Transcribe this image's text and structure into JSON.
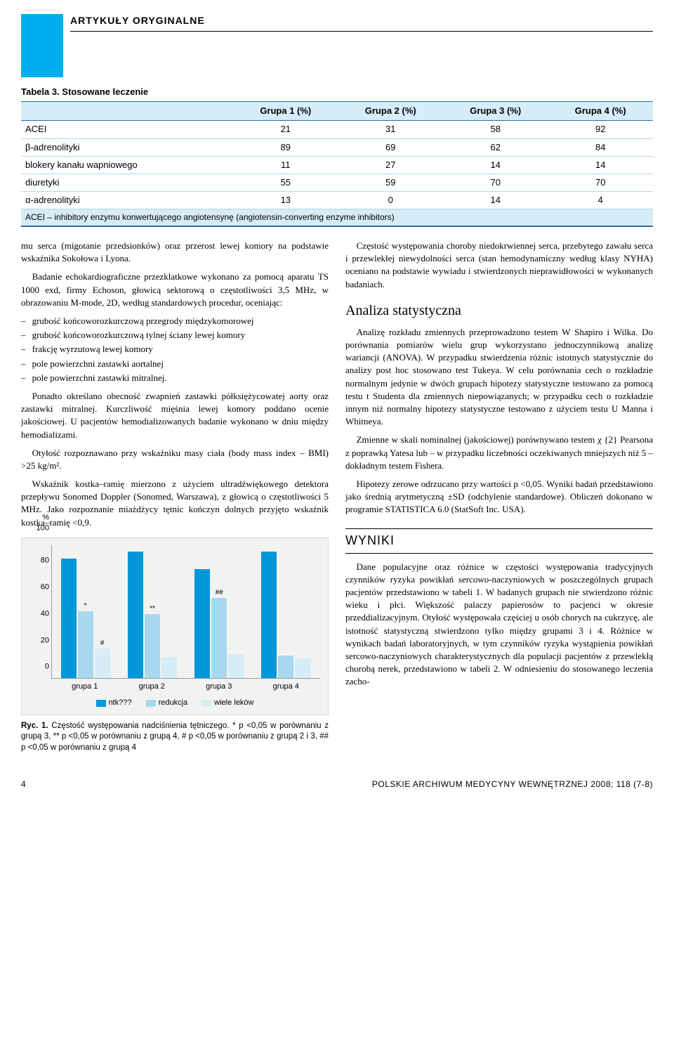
{
  "header": {
    "section_label": "ARTYKUŁY ORYGINALNE"
  },
  "table3": {
    "title": "Tabela 3. Stosowane leczenie",
    "columns": [
      "",
      "Grupa 1 (%)",
      "Grupa 2 (%)",
      "Grupa 3 (%)",
      "Grupa 4 (%)"
    ],
    "rows": [
      [
        "ACEI",
        "21",
        "31",
        "58",
        "92"
      ],
      [
        "β-adrenolityki",
        "89",
        "69",
        "62",
        "84"
      ],
      [
        "blokery kanału wapniowego",
        "11",
        "27",
        "14",
        "14"
      ],
      [
        "diuretyki",
        "55",
        "59",
        "70",
        "70"
      ],
      [
        "α-adrenolityki",
        "13",
        "0",
        "14",
        "4"
      ]
    ],
    "footnote": "ACEI – inhibitory enzymu konwertującego angiotensynę (angiotensin-converting enzyme inhibitors)"
  },
  "left": {
    "p1": "mu serca (migotanie przedsionków) oraz przerost lewej komory na podstawie wskaźnika Sokołowa i Lyona.",
    "p2": "Badanie echokardiograficzne przezklatkowe wykonano za pomocą aparatu TS 1000 exd, firmy Echoson, głowicą sektorową o częstotliwości 3,5 MHz, w obrazowaniu M-mode, 2D, według standardowych procedur, oceniając:",
    "bullets": [
      "grubość końcoworozkurczową przegrody międzykomorowej",
      "grubość końcoworozkurczową tylnej ściany lewej komory",
      "frakcję wyrzutową lewej komory",
      "pole powierzchni zastawki aortalnej",
      "pole powierzchni zastawki mitralnej."
    ],
    "p3": "Ponadto określano obecność zwapnień zastawki półksiężycowatej aorty oraz zastawki mitralnej. Kurczliwość mięśnia lewej komory poddano ocenie jakościowej. U pacjentów hemodializowanych badanie wykonano w dniu między hemodializami.",
    "p4": "Otyłość rozpoznawano przy wskaźniku masy ciała (body mass index – BMI) >25 kg/m².",
    "p5": "Wskaźnik kostka–ramię mierzono z użyciem ultradźwiękowego detektora przepływu Sonomed Doppler (Sonomed, Warszawa), z głowicą o częstotliwości 5 MHz. Jako rozpoznanie miażdżycy tętnic kończyn dolnych przyjęto wskaźnik kostka–ramię <0,9."
  },
  "right": {
    "p1": "Częstość występowania choroby niedokrwiennej serca, przebytego zawału serca i przewlekłej niewydolności serca (stan hemodynamiczny według klasy NYHA) oceniano na podstawie wywiadu i stwierdzonych nieprawidłowości w wykonanych badaniach.",
    "h_stat": "Analiza statystyczna",
    "p2": "Analizę rozkładu zmiennych przeprowadzono testem W Shapiro i Wilka. Do porównania pomiarów wielu grup wykorzystano jednoczynnikową analizę wariancji (ANOVA). W przypadku stwierdzenia różnic istotnych statystycznie do analizy post hoc stosowano test Tukeya. W celu porównania cech o rozkładzie normalnym jedynie w dwóch grupach hipotezy statystyczne testowano za pomocą testu t Studenta dla zmiennych niepowiązanych; w przypadku cech o rozkładzie innym niż normalny hipotezy statystyczne testowano z użyciem testu U Manna i Whitneya.",
    "p3": "Zmienne w skali nominalnej (jakościowej) porównywano testem χ {2} Pearsona z poprawką Yatesa lub – w przypadku liczebności oczekiwanych mniejszych niż 5 – dokładnym testem Fishera.",
    "p4": "Hipotezy zerowe odrzucano przy wartości p <0,05. Wyniki badań przedstawiono jako średnią arytmetyczną ±SD (odchylenie standardowe). Obliczeń dokonano w programie STATISTICA 6.0 (StatSoft Inc. USA).",
    "h_wyniki": "WYNIKI",
    "p5": "Dane populacyjne oraz różnice w częstości występowania tradycyjnych czynników ryzyka powikłań sercowo-naczyniowych w poszczególnych grupach pacjentów przedstawiono w tabeli 1. W badanych grupach nie stwierdzono różnic wieku i płci. Większość palaczy papierosów to pacjenci w okresie przeddializacyjnym. Otyłość występowała częściej u osób chorych na cukrzycę, ale istotność statystyczną stwierdzono tylko między grupami 3 i 4. Różnice w wynikach badań laboratoryjnych, w tym czynników ryzyka wystąpienia powikłań sercowo-naczyniowych charakterystycznych dla populacji pacjentów z przewlekłą chorobą nerek, przedstawiono w tabeli 2. W odniesieniu do stosowanego leczenia zacho-"
  },
  "chart": {
    "type": "bar",
    "ylim": [
      0,
      100
    ],
    "ytick_step": 20,
    "ylabel_prefix": "%",
    "background_color": "#f2f2f0",
    "series_colors": [
      "#0097d8",
      "#a8d8ef",
      "#d6ecf7"
    ],
    "series_labels": [
      "ntk???",
      "redukcja",
      "wiele leków"
    ],
    "categories": [
      "grupa 1",
      "grupa 2",
      "grupa 3",
      "grupa 4"
    ],
    "data": [
      {
        "vals": [
          90,
          50,
          22
        ],
        "marks": [
          "",
          "*",
          "#"
        ]
      },
      {
        "vals": [
          95,
          48,
          16
        ],
        "marks": [
          "",
          "**",
          ""
        ]
      },
      {
        "vals": [
          82,
          60,
          18
        ],
        "marks": [
          "",
          "##",
          ""
        ]
      },
      {
        "vals": [
          95,
          17,
          15
        ],
        "marks": [
          "",
          "",
          ""
        ]
      }
    ]
  },
  "caption": {
    "lead": "Ryc. 1.",
    "text": " Częstość występowania nadciśnienia tętniczego. * p <0,05 w porównaniu z grupą 3, ** p <0,05 w porównaniu z grupą 4, # p <0,05 w porównaniu z grupą 2 i 3, ## p <0,05 w porównaniu z grupą 4"
  },
  "footer": {
    "page": "4",
    "journal": "POLSKIE ARCHIWUM MEDYCYNY WEWNĘTRZNEJ  2008; 118 (7-8)"
  }
}
